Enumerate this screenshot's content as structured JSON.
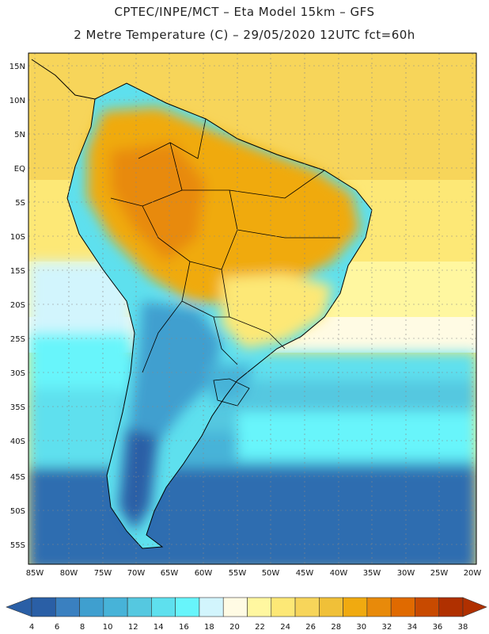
{
  "header": {
    "title_line1": "CPTEC/INPE/MCT –  Eta Model 15km – GFS",
    "title_line2": "2 Metre Temperature (C) – 29/05/2020 12UTC fct=60h"
  },
  "axes": {
    "lat_labels": [
      "15N",
      "10N",
      "5N",
      "EQ",
      "5S",
      "10S",
      "15S",
      "20S",
      "25S",
      "30S",
      "35S",
      "40S",
      "45S",
      "50S",
      "55S"
    ],
    "lon_labels": [
      "85W",
      "80W",
      "75W",
      "70W",
      "65W",
      "60W",
      "55W",
      "50W",
      "45W",
      "40W",
      "35W",
      "30W",
      "25W",
      "20W"
    ]
  },
  "colorbar": {
    "ticks": [
      "4",
      "6",
      "8",
      "10",
      "12",
      "14",
      "16",
      "18",
      "20",
      "22",
      "24",
      "26",
      "28",
      "30",
      "32",
      "34",
      "36",
      "38"
    ],
    "colors": [
      "#2a5fa6",
      "#3a80c0",
      "#3f9fcf",
      "#47b3d8",
      "#55c8e0",
      "#5ee0ee",
      "#67f5fb",
      "#d2f5fd",
      "#fffbe4",
      "#fff7a0",
      "#fde876",
      "#f7d55a",
      "#f0c038",
      "#f0aa10",
      "#e88a0a",
      "#e06a00",
      "#c84a00",
      "#b03000"
    ]
  }
}
